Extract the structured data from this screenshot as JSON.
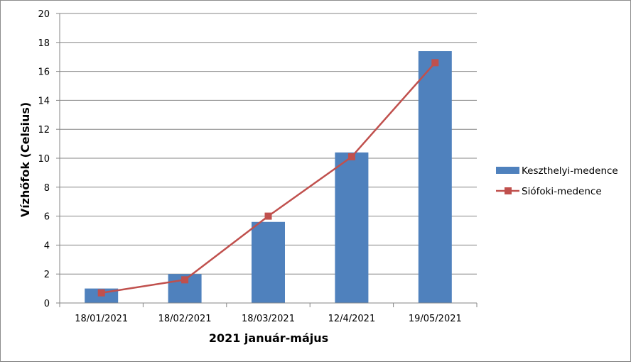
{
  "chart_data": {
    "type": "bar",
    "categories": [
      "18/01/2021",
      "18/02/2021",
      "18/03/2021",
      "12/4/2021",
      "19/05/2021"
    ],
    "series": [
      {
        "name": "Keszthelyi-medence",
        "type": "bar",
        "color": "#4f81bd",
        "values": [
          1.0,
          2.0,
          5.6,
          10.4,
          17.4
        ]
      },
      {
        "name": "Siófoki-medence",
        "type": "line",
        "color": "#c0504d",
        "marker": "square",
        "values": [
          0.7,
          1.6,
          6.0,
          10.1,
          16.6
        ]
      }
    ],
    "title": "",
    "xlabel": "2021 január-május",
    "ylabel": "Vízhőfok (Celsius)",
    "ylim": [
      0,
      20
    ],
    "yticks": [
      "0",
      "2",
      "4",
      "6",
      "8",
      "10",
      "12",
      "14",
      "16",
      "18",
      "20"
    ],
    "grid": true,
    "legend": "right"
  }
}
